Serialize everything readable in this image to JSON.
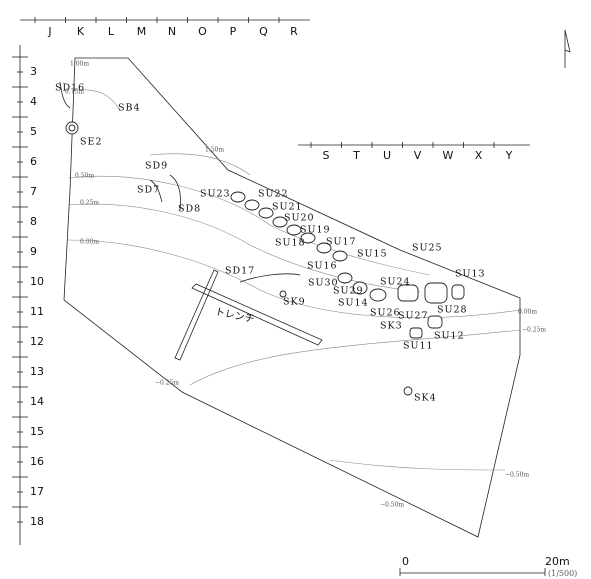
{
  "grid": {
    "columns": [
      "J",
      "K",
      "L",
      "M",
      "N",
      "O",
      "P",
      "Q",
      "R"
    ],
    "rows": [
      "3",
      "4",
      "5",
      "6",
      "7",
      "8",
      "9",
      "10",
      "11",
      "12",
      "13",
      "14",
      "15",
      "16",
      "17",
      "18"
    ],
    "columns_east": [
      "S",
      "T",
      "U",
      "V",
      "W",
      "X",
      "Y"
    ]
  },
  "contours": [
    "1.00m",
    "0.75m",
    "1.50m",
    "0.50m",
    "0.25m",
    "0.00m",
    "0.00m",
    "−0.25m",
    "−0.25m",
    "−0.50m",
    "−0.50m"
  ],
  "features": [
    "SD16",
    "SB4",
    "SE2",
    "SD9",
    "SD7",
    "SD8",
    "SU23",
    "SU22",
    "SU21",
    "SU20",
    "SU19",
    "SU18",
    "SU17",
    "SU16",
    "SU15",
    "SU25",
    "SU13",
    "SD17",
    "SK9",
    "SU30",
    "SU29",
    "SU24",
    "SU14",
    "SU26",
    "SU27",
    "SU28",
    "SK3",
    "SU12",
    "SU11",
    "SK4"
  ],
  "trench_label": "トレンチ",
  "scale": {
    "start": "0",
    "end": "20m",
    "ratio": "(1/500)"
  }
}
